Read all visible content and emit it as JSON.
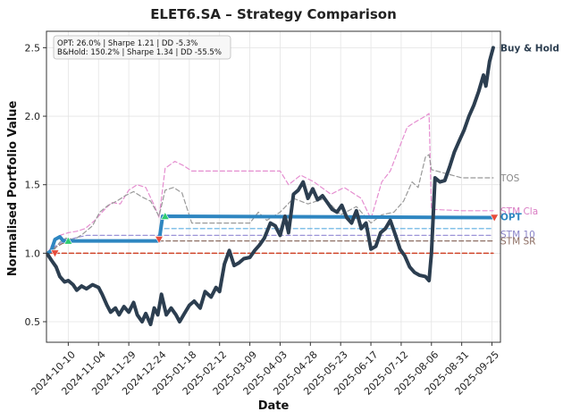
{
  "chart_data": {
    "type": "line",
    "title": "ELET6.SA – Strategy Comparison",
    "xlabel": "Date",
    "ylabel": "Normalised Portfolio Value",
    "xlim": [
      "2024-09-22",
      "2025-10-02"
    ],
    "ylim": [
      0.35,
      2.62
    ],
    "x_ticks": [
      "2024-10-10",
      "2024-11-04",
      "2024-11-29",
      "2024-12-24",
      "2025-01-18",
      "2025-02-12",
      "2025-03-09",
      "2025-04-03",
      "2025-04-28",
      "2025-05-23",
      "2025-06-17",
      "2025-07-12",
      "2025-08-06",
      "2025-08-31",
      "2025-09-25"
    ],
    "y_ticks": [
      0.5,
      1.0,
      1.5,
      2.0,
      2.5
    ],
    "grid": true,
    "stats_box": {
      "line1": "OPT: 26.0% | Sharpe 1.21 | DD -5.3%",
      "line2": "B&Hold: 150.2% | Sharpe 1.34 | DD -55.5%"
    },
    "series": [
      {
        "name": "Buy & Hold",
        "color": "#2c3e50",
        "style": "solid",
        "width": 4,
        "points": [
          [
            "2024-09-23",
            0.99
          ],
          [
            "2024-09-26",
            0.95
          ],
          [
            "2024-09-30",
            0.9
          ],
          [
            "2024-10-03",
            0.83
          ],
          [
            "2024-10-07",
            0.79
          ],
          [
            "2024-10-10",
            0.8
          ],
          [
            "2024-10-14",
            0.77
          ],
          [
            "2024-10-17",
            0.73
          ],
          [
            "2024-10-21",
            0.76
          ],
          [
            "2024-10-25",
            0.74
          ],
          [
            "2024-10-30",
            0.77
          ],
          [
            "2024-11-04",
            0.75
          ],
          [
            "2024-11-07",
            0.7
          ],
          [
            "2024-11-11",
            0.62
          ],
          [
            "2024-11-14",
            0.57
          ],
          [
            "2024-11-18",
            0.6
          ],
          [
            "2024-11-21",
            0.55
          ],
          [
            "2024-11-25",
            0.61
          ],
          [
            "2024-11-29",
            0.57
          ],
          [
            "2024-12-03",
            0.64
          ],
          [
            "2024-12-06",
            0.55
          ],
          [
            "2024-12-10",
            0.5
          ],
          [
            "2024-12-13",
            0.56
          ],
          [
            "2024-12-17",
            0.48
          ],
          [
            "2024-12-20",
            0.6
          ],
          [
            "2024-12-23",
            0.55
          ],
          [
            "2024-12-26",
            0.7
          ],
          [
            "2024-12-30",
            0.55
          ],
          [
            "2025-01-03",
            0.6
          ],
          [
            "2025-01-07",
            0.55
          ],
          [
            "2025-01-10",
            0.5
          ],
          [
            "2025-01-14",
            0.56
          ],
          [
            "2025-01-18",
            0.62
          ],
          [
            "2025-01-22",
            0.65
          ],
          [
            "2025-01-27",
            0.6
          ],
          [
            "2025-01-31",
            0.72
          ],
          [
            "2025-02-05",
            0.68
          ],
          [
            "2025-02-09",
            0.75
          ],
          [
            "2025-02-12",
            0.72
          ],
          [
            "2025-02-16",
            0.92
          ],
          [
            "2025-02-20",
            1.02
          ],
          [
            "2025-02-24",
            0.91
          ],
          [
            "2025-02-28",
            0.93
          ],
          [
            "2025-03-04",
            0.96
          ],
          [
            "2025-03-09",
            0.97
          ],
          [
            "2025-03-13",
            1.02
          ],
          [
            "2025-03-17",
            1.06
          ],
          [
            "2025-03-21",
            1.11
          ],
          [
            "2025-03-26",
            1.22
          ],
          [
            "2025-03-30",
            1.2
          ],
          [
            "2025-04-03",
            1.13
          ],
          [
            "2025-04-07",
            1.27
          ],
          [
            "2025-04-10",
            1.15
          ],
          [
            "2025-04-14",
            1.43
          ],
          [
            "2025-04-18",
            1.46
          ],
          [
            "2025-04-22",
            1.52
          ],
          [
            "2025-04-26",
            1.4
          ],
          [
            "2025-04-30",
            1.47
          ],
          [
            "2025-05-04",
            1.39
          ],
          [
            "2025-05-08",
            1.42
          ],
          [
            "2025-05-12",
            1.37
          ],
          [
            "2025-05-16",
            1.32
          ],
          [
            "2025-05-20",
            1.3
          ],
          [
            "2025-05-24",
            1.35
          ],
          [
            "2025-05-28",
            1.26
          ],
          [
            "2025-06-01",
            1.22
          ],
          [
            "2025-06-05",
            1.31
          ],
          [
            "2025-06-09",
            1.18
          ],
          [
            "2025-06-13",
            1.22
          ],
          [
            "2025-06-17",
            1.03
          ],
          [
            "2025-06-21",
            1.05
          ],
          [
            "2025-06-25",
            1.15
          ],
          [
            "2025-06-29",
            1.18
          ],
          [
            "2025-07-03",
            1.24
          ],
          [
            "2025-07-07",
            1.14
          ],
          [
            "2025-07-11",
            1.03
          ],
          [
            "2025-07-15",
            0.98
          ],
          [
            "2025-07-19",
            0.9
          ],
          [
            "2025-07-23",
            0.86
          ],
          [
            "2025-07-27",
            0.84
          ],
          [
            "2025-08-01",
            0.83
          ],
          [
            "2025-08-04",
            0.8
          ],
          [
            "2025-08-06",
            1.0
          ],
          [
            "2025-08-09",
            1.55
          ],
          [
            "2025-08-13",
            1.52
          ],
          [
            "2025-08-17",
            1.53
          ],
          [
            "2025-08-21",
            1.63
          ],
          [
            "2025-08-25",
            1.74
          ],
          [
            "2025-08-29",
            1.82
          ],
          [
            "2025-09-02",
            1.9
          ],
          [
            "2025-09-06",
            2.0
          ],
          [
            "2025-09-10",
            2.08
          ],
          [
            "2025-09-14",
            2.18
          ],
          [
            "2025-09-18",
            2.3
          ],
          [
            "2025-09-20",
            2.22
          ],
          [
            "2025-09-23",
            2.4
          ],
          [
            "2025-09-26",
            2.5
          ]
        ]
      },
      {
        "name": "OPT",
        "color": "#2e86c1",
        "style": "solid",
        "width": 4,
        "points": [
          [
            "2024-09-23",
            1.0
          ],
          [
            "2024-09-26",
            1.02
          ],
          [
            "2024-09-29",
            1.1
          ],
          [
            "2024-10-03",
            1.12
          ],
          [
            "2024-10-06",
            1.09
          ],
          [
            "2024-10-12",
            1.09
          ],
          [
            "2024-12-24",
            1.09
          ],
          [
            "2024-12-27",
            1.27
          ],
          [
            "2025-09-26",
            1.26
          ]
        ]
      },
      {
        "name": "TOS",
        "color": "#999999",
        "style": "dashed",
        "width": 1.2,
        "points": [
          [
            "2024-09-23",
            1.0
          ],
          [
            "2024-09-28",
            1.02
          ],
          [
            "2024-10-03",
            1.08
          ],
          [
            "2024-10-08",
            1.11
          ],
          [
            "2024-10-15",
            1.1
          ],
          [
            "2024-10-22",
            1.14
          ],
          [
            "2024-10-30",
            1.2
          ],
          [
            "2024-11-05",
            1.3
          ],
          [
            "2024-11-12",
            1.35
          ],
          [
            "2024-11-19",
            1.38
          ],
          [
            "2024-11-26",
            1.42
          ],
          [
            "2024-12-03",
            1.45
          ],
          [
            "2024-12-10",
            1.41
          ],
          [
            "2024-12-17",
            1.38
          ],
          [
            "2024-12-24",
            1.27
          ],
          [
            "2024-12-29",
            1.46
          ],
          [
            "2025-01-05",
            1.48
          ],
          [
            "2025-01-12",
            1.44
          ],
          [
            "2025-01-20",
            1.22
          ],
          [
            "2025-02-10",
            1.22
          ],
          [
            "2025-03-09",
            1.22
          ],
          [
            "2025-03-16",
            1.3
          ],
          [
            "2025-03-23",
            1.24
          ],
          [
            "2025-04-03",
            1.3
          ],
          [
            "2025-04-14",
            1.4
          ],
          [
            "2025-04-26",
            1.36
          ],
          [
            "2025-05-10",
            1.4
          ],
          [
            "2025-05-23",
            1.28
          ],
          [
            "2025-06-05",
            1.34
          ],
          [
            "2025-06-17",
            1.22
          ],
          [
            "2025-06-26",
            1.28
          ],
          [
            "2025-07-06",
            1.3
          ],
          [
            "2025-07-14",
            1.38
          ],
          [
            "2025-07-21",
            1.52
          ],
          [
            "2025-07-26",
            1.48
          ],
          [
            "2025-08-01",
            1.7
          ],
          [
            "2025-08-04",
            1.72
          ],
          [
            "2025-08-06",
            1.61
          ],
          [
            "2025-08-31",
            1.55
          ],
          [
            "2025-09-26",
            1.55
          ]
        ]
      },
      {
        "name": "STM Cla",
        "color": "#e58ed0",
        "style": "dashed",
        "width": 1.2,
        "points": [
          [
            "2024-09-23",
            1.0
          ],
          [
            "2024-09-27",
            1.07
          ],
          [
            "2024-10-03",
            1.13
          ],
          [
            "2024-10-10",
            1.15
          ],
          [
            "2024-10-17",
            1.16
          ],
          [
            "2024-10-24",
            1.18
          ],
          [
            "2024-11-01",
            1.24
          ],
          [
            "2024-11-08",
            1.31
          ],
          [
            "2024-11-15",
            1.37
          ],
          [
            "2024-11-22",
            1.36
          ],
          [
            "2024-11-29",
            1.46
          ],
          [
            "2024-12-06",
            1.5
          ],
          [
            "2024-12-13",
            1.48
          ],
          [
            "2024-12-20",
            1.35
          ],
          [
            "2024-12-24",
            1.26
          ],
          [
            "2024-12-29",
            1.62
          ],
          [
            "2025-01-06",
            1.67
          ],
          [
            "2025-01-13",
            1.64
          ],
          [
            "2025-01-20",
            1.6
          ],
          [
            "2025-02-12",
            1.6
          ],
          [
            "2025-03-09",
            1.6
          ],
          [
            "2025-04-03",
            1.6
          ],
          [
            "2025-04-10",
            1.5
          ],
          [
            "2025-04-20",
            1.57
          ],
          [
            "2025-05-01",
            1.52
          ],
          [
            "2025-05-15",
            1.43
          ],
          [
            "2025-05-26",
            1.48
          ],
          [
            "2025-06-09",
            1.4
          ],
          [
            "2025-06-17",
            1.25
          ],
          [
            "2025-06-26",
            1.52
          ],
          [
            "2025-07-03",
            1.6
          ],
          [
            "2025-07-10",
            1.76
          ],
          [
            "2025-07-17",
            1.92
          ],
          [
            "2025-07-24",
            1.96
          ],
          [
            "2025-08-01",
            2.0
          ],
          [
            "2025-08-04",
            2.02
          ],
          [
            "2025-08-06",
            1.32
          ],
          [
            "2025-08-31",
            1.31
          ],
          [
            "2025-09-26",
            1.31
          ]
        ]
      },
      {
        "name": "STM 10",
        "color": "#9b94d8",
        "style": "dashed",
        "width": 1.2,
        "points": [
          [
            "2024-09-23",
            1.0
          ],
          [
            "2024-09-29",
            1.05
          ],
          [
            "2024-10-05",
            1.08
          ],
          [
            "2024-10-15",
            1.11
          ],
          [
            "2024-10-25",
            1.13
          ],
          [
            "2024-11-20",
            1.13
          ],
          [
            "2025-02-12",
            1.13
          ],
          [
            "2025-05-23",
            1.13
          ],
          [
            "2025-09-26",
            1.13
          ]
        ]
      },
      {
        "name": "STM SR",
        "color": "#8d6e63",
        "style": "dashed",
        "width": 1.2,
        "points": [
          [
            "2024-09-23",
            1.0
          ],
          [
            "2024-09-29",
            1.04
          ],
          [
            "2024-10-05",
            1.07
          ],
          [
            "2024-10-15",
            1.09
          ],
          [
            "2024-11-20",
            1.09
          ],
          [
            "2025-02-12",
            1.09
          ],
          [
            "2025-05-23",
            1.09
          ],
          [
            "2025-09-26",
            1.09
          ]
        ]
      },
      {
        "name": "",
        "color": "#5dade2",
        "style": "dashed",
        "width": 1.2,
        "points": [
          [
            "2024-12-24",
            1.1
          ],
          [
            "2024-12-26",
            1.18
          ],
          [
            "2025-02-12",
            1.18
          ],
          [
            "2025-05-23",
            1.18
          ],
          [
            "2025-08-06",
            1.18
          ],
          [
            "2025-09-26",
            1.18
          ]
        ]
      },
      {
        "name": "",
        "color": "#d0452a",
        "style": "dashed",
        "width": 1.5,
        "points": [
          [
            "2024-09-23",
            1.0
          ],
          [
            "2025-02-12",
            1.0
          ],
          [
            "2025-09-26",
            1.0
          ]
        ]
      }
    ],
    "markers": [
      {
        "type": "sell",
        "date": "2024-09-29",
        "value": 1.0,
        "color": "#e74c3c"
      },
      {
        "type": "buy",
        "date": "2024-10-10",
        "value": 1.09,
        "color": "#2ecc71"
      },
      {
        "type": "sell",
        "date": "2024-12-24",
        "value": 1.1,
        "color": "#e74c3c"
      },
      {
        "type": "buy",
        "date": "2024-12-29",
        "value": 1.27,
        "color": "#2ecc71"
      },
      {
        "type": "sell",
        "date": "2025-09-27",
        "value": 1.26,
        "color": "#e74c3c"
      }
    ],
    "end_labels": [
      {
        "text": "Buy & Hold",
        "value": 2.5,
        "color": "#2c3e50",
        "bold": true
      },
      {
        "text": "TOS",
        "value": 1.55,
        "color": "#888888",
        "bold": false
      },
      {
        "text": "STM Cla",
        "value": 1.31,
        "color": "#d97cc3",
        "bold": false
      },
      {
        "text": "OPT",
        "value": 1.265,
        "color": "#2e86c1",
        "bold": true
      },
      {
        "text": "STM 10",
        "value": 1.14,
        "color": "#8a84c8",
        "bold": false
      },
      {
        "text": "STM SR",
        "value": 1.09,
        "color": "#8d6e63",
        "bold": false
      }
    ]
  }
}
